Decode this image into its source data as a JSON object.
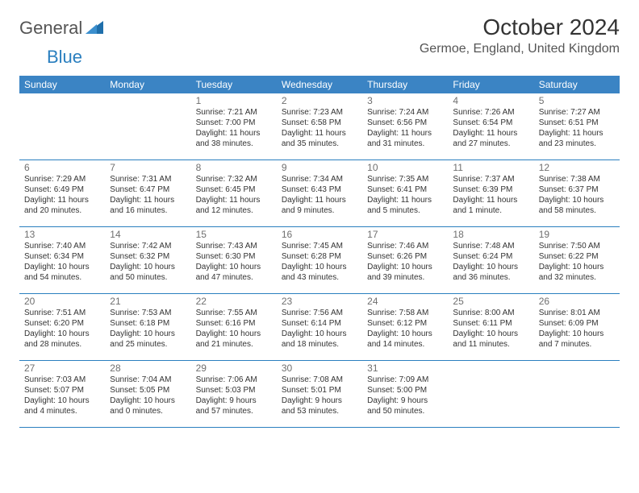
{
  "logo": {
    "general": "General",
    "blue": "Blue"
  },
  "title": "October 2024",
  "subtitle": "Germoe, England, United Kingdom",
  "colors": {
    "header_bg": "#3b84c4",
    "header_text": "#ffffff",
    "week_border": "#2a7fbf",
    "daynum": "#6f6f6f",
    "body_text": "#333333"
  },
  "fonts": {
    "title_size": 28,
    "subtitle_size": 16,
    "day_header_size": 12,
    "daynum_size": 12,
    "cell_size": 10
  },
  "day_headers": [
    "Sunday",
    "Monday",
    "Tuesday",
    "Wednesday",
    "Thursday",
    "Friday",
    "Saturday"
  ],
  "weeks": [
    [
      {
        "n": "",
        "lines": []
      },
      {
        "n": "",
        "lines": []
      },
      {
        "n": "1",
        "lines": [
          "Sunrise: 7:21 AM",
          "Sunset: 7:00 PM",
          "Daylight: 11 hours",
          "and 38 minutes."
        ]
      },
      {
        "n": "2",
        "lines": [
          "Sunrise: 7:23 AM",
          "Sunset: 6:58 PM",
          "Daylight: 11 hours",
          "and 35 minutes."
        ]
      },
      {
        "n": "3",
        "lines": [
          "Sunrise: 7:24 AM",
          "Sunset: 6:56 PM",
          "Daylight: 11 hours",
          "and 31 minutes."
        ]
      },
      {
        "n": "4",
        "lines": [
          "Sunrise: 7:26 AM",
          "Sunset: 6:54 PM",
          "Daylight: 11 hours",
          "and 27 minutes."
        ]
      },
      {
        "n": "5",
        "lines": [
          "Sunrise: 7:27 AM",
          "Sunset: 6:51 PM",
          "Daylight: 11 hours",
          "and 23 minutes."
        ]
      }
    ],
    [
      {
        "n": "6",
        "lines": [
          "Sunrise: 7:29 AM",
          "Sunset: 6:49 PM",
          "Daylight: 11 hours",
          "and 20 minutes."
        ]
      },
      {
        "n": "7",
        "lines": [
          "Sunrise: 7:31 AM",
          "Sunset: 6:47 PM",
          "Daylight: 11 hours",
          "and 16 minutes."
        ]
      },
      {
        "n": "8",
        "lines": [
          "Sunrise: 7:32 AM",
          "Sunset: 6:45 PM",
          "Daylight: 11 hours",
          "and 12 minutes."
        ]
      },
      {
        "n": "9",
        "lines": [
          "Sunrise: 7:34 AM",
          "Sunset: 6:43 PM",
          "Daylight: 11 hours",
          "and 9 minutes."
        ]
      },
      {
        "n": "10",
        "lines": [
          "Sunrise: 7:35 AM",
          "Sunset: 6:41 PM",
          "Daylight: 11 hours",
          "and 5 minutes."
        ]
      },
      {
        "n": "11",
        "lines": [
          "Sunrise: 7:37 AM",
          "Sunset: 6:39 PM",
          "Daylight: 11 hours",
          "and 1 minute."
        ]
      },
      {
        "n": "12",
        "lines": [
          "Sunrise: 7:38 AM",
          "Sunset: 6:37 PM",
          "Daylight: 10 hours",
          "and 58 minutes."
        ]
      }
    ],
    [
      {
        "n": "13",
        "lines": [
          "Sunrise: 7:40 AM",
          "Sunset: 6:34 PM",
          "Daylight: 10 hours",
          "and 54 minutes."
        ]
      },
      {
        "n": "14",
        "lines": [
          "Sunrise: 7:42 AM",
          "Sunset: 6:32 PM",
          "Daylight: 10 hours",
          "and 50 minutes."
        ]
      },
      {
        "n": "15",
        "lines": [
          "Sunrise: 7:43 AM",
          "Sunset: 6:30 PM",
          "Daylight: 10 hours",
          "and 47 minutes."
        ]
      },
      {
        "n": "16",
        "lines": [
          "Sunrise: 7:45 AM",
          "Sunset: 6:28 PM",
          "Daylight: 10 hours",
          "and 43 minutes."
        ]
      },
      {
        "n": "17",
        "lines": [
          "Sunrise: 7:46 AM",
          "Sunset: 6:26 PM",
          "Daylight: 10 hours",
          "and 39 minutes."
        ]
      },
      {
        "n": "18",
        "lines": [
          "Sunrise: 7:48 AM",
          "Sunset: 6:24 PM",
          "Daylight: 10 hours",
          "and 36 minutes."
        ]
      },
      {
        "n": "19",
        "lines": [
          "Sunrise: 7:50 AM",
          "Sunset: 6:22 PM",
          "Daylight: 10 hours",
          "and 32 minutes."
        ]
      }
    ],
    [
      {
        "n": "20",
        "lines": [
          "Sunrise: 7:51 AM",
          "Sunset: 6:20 PM",
          "Daylight: 10 hours",
          "and 28 minutes."
        ]
      },
      {
        "n": "21",
        "lines": [
          "Sunrise: 7:53 AM",
          "Sunset: 6:18 PM",
          "Daylight: 10 hours",
          "and 25 minutes."
        ]
      },
      {
        "n": "22",
        "lines": [
          "Sunrise: 7:55 AM",
          "Sunset: 6:16 PM",
          "Daylight: 10 hours",
          "and 21 minutes."
        ]
      },
      {
        "n": "23",
        "lines": [
          "Sunrise: 7:56 AM",
          "Sunset: 6:14 PM",
          "Daylight: 10 hours",
          "and 18 minutes."
        ]
      },
      {
        "n": "24",
        "lines": [
          "Sunrise: 7:58 AM",
          "Sunset: 6:12 PM",
          "Daylight: 10 hours",
          "and 14 minutes."
        ]
      },
      {
        "n": "25",
        "lines": [
          "Sunrise: 8:00 AM",
          "Sunset: 6:11 PM",
          "Daylight: 10 hours",
          "and 11 minutes."
        ]
      },
      {
        "n": "26",
        "lines": [
          "Sunrise: 8:01 AM",
          "Sunset: 6:09 PM",
          "Daylight: 10 hours",
          "and 7 minutes."
        ]
      }
    ],
    [
      {
        "n": "27",
        "lines": [
          "Sunrise: 7:03 AM",
          "Sunset: 5:07 PM",
          "Daylight: 10 hours",
          "and 4 minutes."
        ]
      },
      {
        "n": "28",
        "lines": [
          "Sunrise: 7:04 AM",
          "Sunset: 5:05 PM",
          "Daylight: 10 hours",
          "and 0 minutes."
        ]
      },
      {
        "n": "29",
        "lines": [
          "Sunrise: 7:06 AM",
          "Sunset: 5:03 PM",
          "Daylight: 9 hours",
          "and 57 minutes."
        ]
      },
      {
        "n": "30",
        "lines": [
          "Sunrise: 7:08 AM",
          "Sunset: 5:01 PM",
          "Daylight: 9 hours",
          "and 53 minutes."
        ]
      },
      {
        "n": "31",
        "lines": [
          "Sunrise: 7:09 AM",
          "Sunset: 5:00 PM",
          "Daylight: 9 hours",
          "and 50 minutes."
        ]
      },
      {
        "n": "",
        "lines": []
      },
      {
        "n": "",
        "lines": []
      }
    ]
  ]
}
